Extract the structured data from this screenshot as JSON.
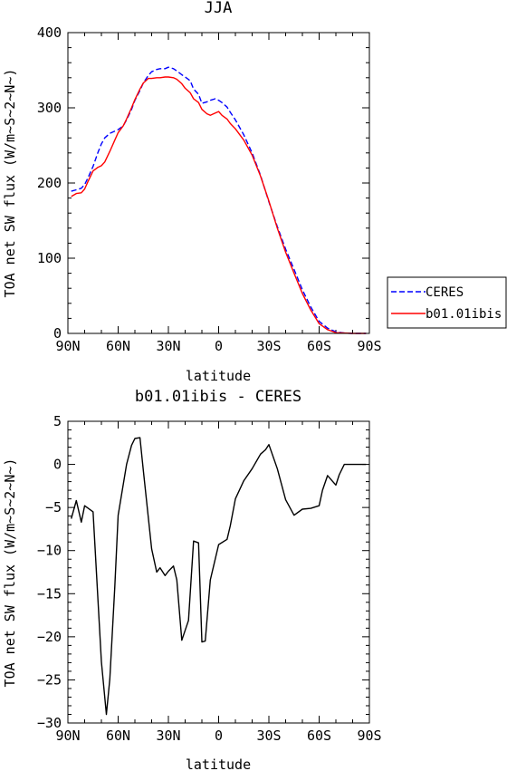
{
  "chart_data": [
    {
      "type": "line",
      "title": "JJA",
      "xlabel": "latitude",
      "ylabel": "TOA net SW flux (W/m~S~2~N~)",
      "x_tick_labels": [
        "90N",
        "60N",
        "30N",
        "0",
        "30S",
        "60S",
        "90S"
      ],
      "x_tick_values": [
        90,
        60,
        30,
        0,
        -30,
        -60,
        -90
      ],
      "y_tick_values": [
        0,
        100,
        200,
        300,
        400
      ],
      "xlim": [
        90,
        -90
      ],
      "ylim": [
        0,
        400
      ],
      "legend_position": "right",
      "series": [
        {
          "name": "CERES",
          "color": "#0000ff",
          "dash": "dashed",
          "x": [
            88,
            85,
            82,
            80,
            78,
            75,
            72,
            70,
            68,
            65,
            62,
            60,
            57,
            55,
            52,
            50,
            47,
            45,
            42,
            40,
            37,
            35,
            32,
            30,
            27,
            25,
            22,
            20,
            17,
            15,
            12,
            10,
            7,
            5,
            2,
            0,
            -2,
            -5,
            -7,
            -10,
            -15,
            -20,
            -25,
            -30,
            -35,
            -40,
            -45,
            -50,
            -55,
            -60,
            -65,
            -70,
            -75,
            -80,
            -85,
            -88
          ],
          "y": [
            189,
            191,
            193,
            198,
            207,
            222,
            241,
            252,
            260,
            266,
            269,
            271,
            276,
            284,
            298,
            310,
            323,
            333,
            343,
            348,
            351,
            352,
            352,
            354,
            352,
            349,
            344,
            341,
            336,
            325,
            318,
            306,
            308,
            310,
            312,
            310,
            307,
            301,
            294,
            284,
            264,
            240,
            210,
            175,
            142,
            112,
            85,
            58,
            35,
            16,
            7,
            2,
            0.5,
            0,
            0,
            0
          ]
        },
        {
          "name": "b01.01ibis",
          "color": "#ff0000",
          "dash": "solid",
          "x": [
            88,
            85,
            82,
            80,
            78,
            75,
            72,
            70,
            68,
            65,
            62,
            60,
            57,
            55,
            52,
            50,
            47,
            45,
            42,
            40,
            37,
            35,
            32,
            30,
            27,
            25,
            22,
            20,
            17,
            15,
            12,
            10,
            7,
            5,
            2,
            0,
            -2,
            -5,
            -7,
            -10,
            -15,
            -20,
            -25,
            -30,
            -35,
            -40,
            -45,
            -50,
            -55,
            -60,
            -65,
            -70,
            -75,
            -80,
            -85,
            -88
          ],
          "y": [
            182,
            186,
            187,
            192,
            202,
            216,
            221,
            223,
            228,
            242,
            257,
            267,
            276,
            285,
            300,
            311,
            325,
            333,
            339,
            339,
            340,
            340,
            341,
            341,
            340,
            338,
            332,
            326,
            320,
            312,
            307,
            298,
            292,
            290,
            293,
            295,
            290,
            285,
            279,
            272,
            257,
            237,
            209,
            176,
            140,
            108,
            80,
            53,
            31,
            13,
            5,
            1,
            0.5,
            0,
            0,
            0
          ]
        }
      ]
    },
    {
      "type": "line",
      "title": "b01.01ibis - CERES",
      "xlabel": "latitude",
      "ylabel": "TOA net SW flux (W/m~S~2~N~)",
      "x_tick_labels": [
        "90N",
        "60N",
        "30N",
        "0",
        "30S",
        "60S",
        "90S"
      ],
      "x_tick_values": [
        90,
        60,
        30,
        0,
        -30,
        -60,
        -90
      ],
      "y_tick_values": [
        -30,
        -25,
        -20,
        -15,
        -10,
        -5,
        0,
        5
      ],
      "xlim": [
        90,
        -90
      ],
      "ylim": [
        -30,
        5
      ],
      "series": [
        {
          "color": "#000000",
          "dash": "solid",
          "x": [
            88,
            85,
            82,
            80,
            75,
            70,
            67,
            65,
            62,
            60,
            55,
            52,
            50,
            47,
            45,
            40,
            37,
            35,
            32,
            30,
            27,
            25,
            22,
            18,
            15,
            12,
            10,
            8,
            5,
            3,
            0,
            -5,
            -7,
            -10,
            -15,
            -20,
            -25,
            -28,
            -30,
            -35,
            -40,
            -45,
            -50,
            -55,
            -60,
            -62,
            -65,
            -70,
            -72,
            -75,
            -80,
            -85,
            -88
          ],
          "y": [
            -6.3,
            -4.2,
            -6.7,
            -4.8,
            -5.5,
            -22.9,
            -29.0,
            -24.9,
            -14.2,
            -5.9,
            0.0,
            2.2,
            3.0,
            3.1,
            -0.7,
            -9.8,
            -12.5,
            -12.0,
            -12.9,
            -12.4,
            -11.8,
            -13.4,
            -20.4,
            -18.1,
            -8.9,
            -9.1,
            -20.6,
            -20.5,
            -13.4,
            -11.8,
            -9.3,
            -8.7,
            -7.1,
            -4.0,
            -1.9,
            -0.5,
            1.2,
            1.7,
            2.3,
            -0.5,
            -4.1,
            -5.9,
            -5.2,
            -5.1,
            -4.8,
            -3.0,
            -1.3,
            -2.4,
            -1.2,
            0.0,
            0.0,
            0.0,
            0.0
          ]
        }
      ]
    }
  ]
}
